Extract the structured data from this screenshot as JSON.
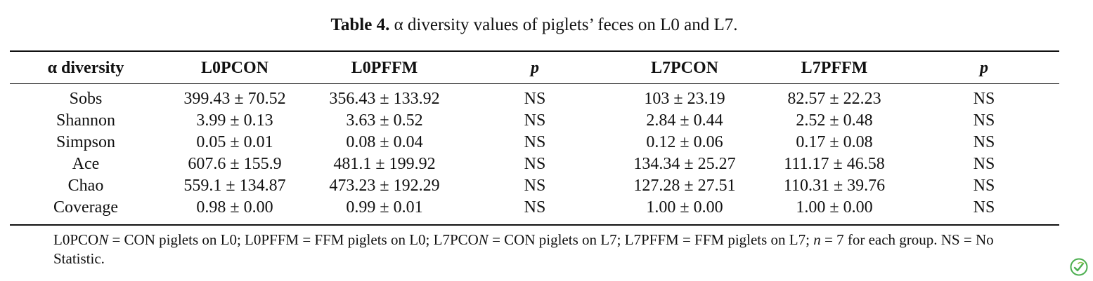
{
  "caption": {
    "label": "Table 4.",
    "text": "α diversity values of piglets’ feces on L0 and L7."
  },
  "table": {
    "headers": [
      "α diversity",
      "L0PCON",
      "L0PFFM",
      "p",
      "L7PCON",
      "L7PFFM",
      "p"
    ],
    "rows": [
      [
        "Sobs",
        "399.43 ± 70.52",
        "356.43 ± 133.92",
        "NS",
        "103 ± 23.19",
        "82.57 ± 22.23",
        "NS"
      ],
      [
        "Shannon",
        "3.99 ± 0.13",
        "3.63 ± 0.52",
        "NS",
        "2.84 ± 0.44",
        "2.52 ± 0.48",
        "NS"
      ],
      [
        "Simpson",
        "0.05 ± 0.01",
        "0.08 ± 0.04",
        "NS",
        "0.12 ± 0.06",
        "0.17 ± 0.08",
        "NS"
      ],
      [
        "Ace",
        "607.6 ± 155.9",
        "481.1 ± 199.92",
        "NS",
        "134.34 ± 25.27",
        "111.17 ± 46.58",
        "NS"
      ],
      [
        "Chao",
        "559.1 ± 134.87",
        "473.23 ± 192.29",
        "NS",
        "127.28 ± 27.51",
        "110.31 ± 39.76",
        "NS"
      ],
      [
        "Coverage",
        "0.98 ± 0.00",
        "0.99 ± 0.01",
        "NS",
        "1.00 ± 0.00",
        "1.00 ± 0.00",
        "NS"
      ]
    ]
  },
  "footnote": {
    "seg1": "L0PCO",
    "seg2": "N",
    "seg3": " = CON piglets on L0; L0PFFM = FFM piglets on L0; L7PCO",
    "seg4": "N",
    "seg5": " = CON piglets on L7; L7PFFM = FFM piglets on L7; ",
    "seg6": "n",
    "seg7": " = 7 for each group. NS = No Statistic."
  },
  "colors": {
    "text": "#111111",
    "rule": "#111111",
    "badge": "#4caf50"
  },
  "badge_icon": "leaf-check-icon"
}
